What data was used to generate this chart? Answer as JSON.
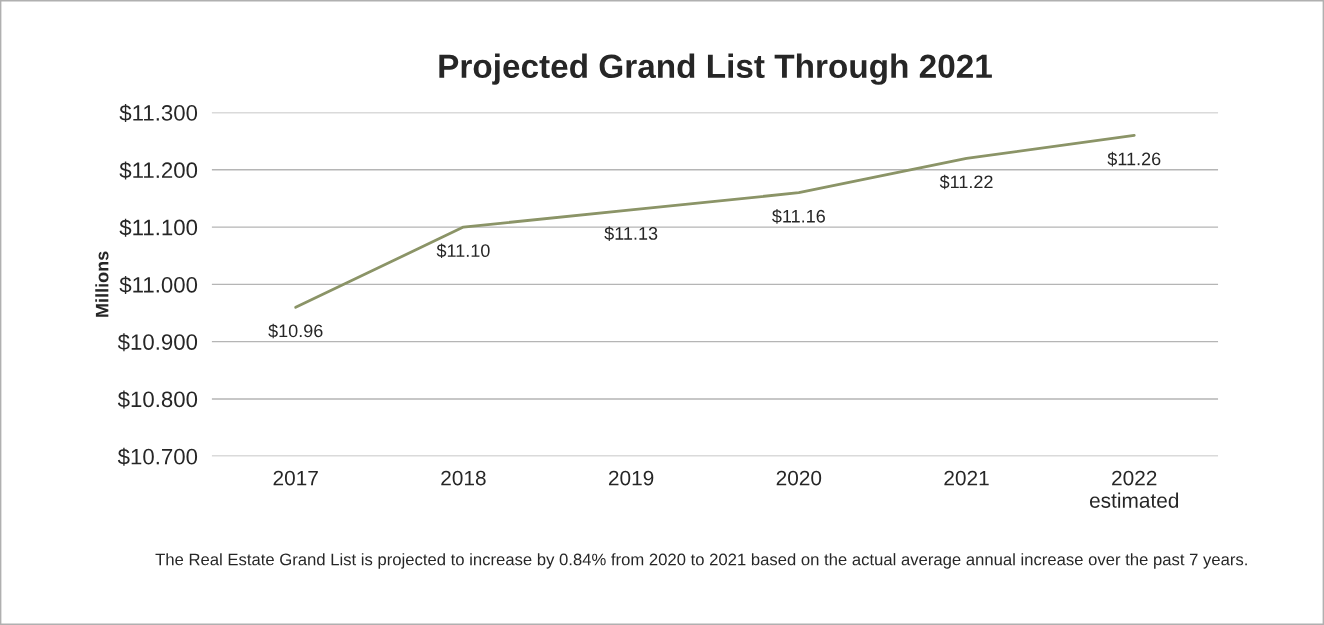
{
  "chart_data": {
    "type": "line",
    "title": "Projected Grand List Through 2021",
    "ylabel": "Millions",
    "categories": [
      "2017",
      "2018",
      "2019",
      "2020",
      "2021",
      "2022\nestimated"
    ],
    "series": [
      {
        "color": "#8b9467",
        "values": [
          10.96,
          11.1,
          11.13,
          11.16,
          11.22,
          11.26
        ]
      }
    ],
    "value_labels": [
      "$10.96",
      "$11.10",
      "$11.13",
      "$11.16",
      "$11.22",
      "$11.26"
    ],
    "ylim": [
      10.7,
      11.3
    ],
    "yticks": [
      {
        "value": 10.7,
        "label": "$10.700"
      },
      {
        "value": 10.8,
        "label": "$10.800"
      },
      {
        "value": 10.9,
        "label": "$10.900"
      },
      {
        "value": 11.0,
        "label": "$11.000"
      },
      {
        "value": 11.1,
        "label": "$11.100"
      },
      {
        "value": 11.2,
        "label": "$11.200"
      },
      {
        "value": 11.3,
        "label": "$11.300"
      }
    ],
    "grid": "y",
    "marker": "none",
    "line_style": "solid",
    "annotations": [
      "The Real Estate Grand List is projected to increase by 0.84% from 2020 to 2021 based on the actual average annual increase over the past 7 years."
    ]
  }
}
